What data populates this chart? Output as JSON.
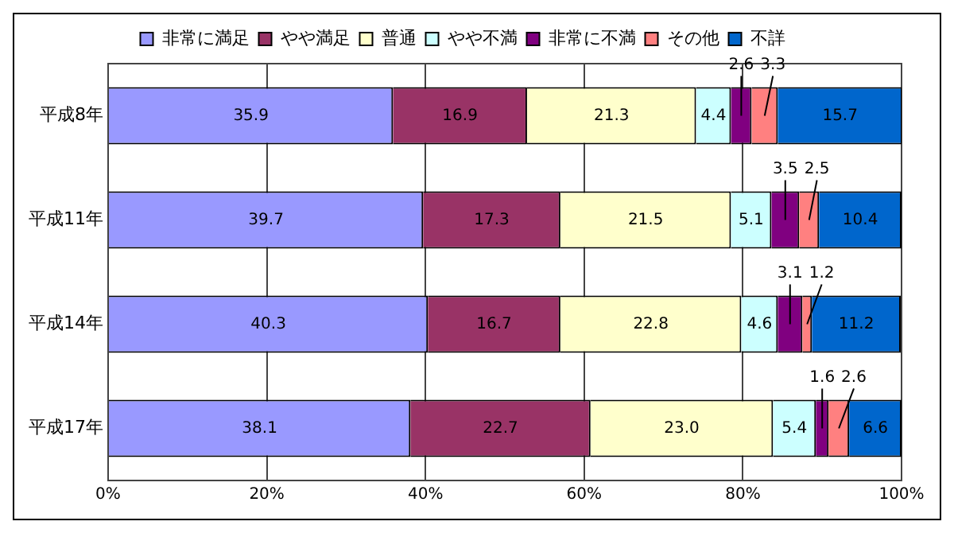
{
  "chart_data": {
    "type": "bar",
    "orientation": "horizontal",
    "stacked": true,
    "categories": [
      "平成8年",
      "平成11年",
      "平成14年",
      "平成17年"
    ],
    "series": [
      {
        "name": "非常に満足",
        "color": "#9999ff",
        "values": [
          35.9,
          39.7,
          40.3,
          38.1
        ],
        "value_labels": [
          "35.9",
          "39.7",
          "40.3",
          "38.1"
        ]
      },
      {
        "name": "やや満足",
        "color": "#993366",
        "values": [
          16.9,
          17.3,
          16.7,
          22.7
        ],
        "value_labels": [
          "16.9",
          "17.3",
          "16.7",
          "22.7"
        ]
      },
      {
        "name": "普通",
        "color": "#ffffcc",
        "values": [
          21.3,
          21.5,
          22.8,
          23.0
        ],
        "value_labels": [
          "21.3",
          "21.5",
          "22.8",
          "23.0"
        ]
      },
      {
        "name": "やや不満",
        "color": "#ccffff",
        "values": [
          4.4,
          5.1,
          4.6,
          5.4
        ],
        "value_labels": [
          "4.4",
          "5.1",
          "4.6",
          "5.4"
        ]
      },
      {
        "name": "非常に不満",
        "color": "#800080",
        "values": [
          2.6,
          3.5,
          3.1,
          1.6
        ],
        "value_labels": [
          "2.6",
          "3.5",
          "3.1",
          "1.6"
        ]
      },
      {
        "name": "その他",
        "color": "#ff8080",
        "values": [
          3.3,
          2.5,
          1.2,
          2.6
        ],
        "value_labels": [
          "3.3",
          "2.5",
          "1.2",
          "2.6"
        ]
      },
      {
        "name": "不詳",
        "color": "#0066cc",
        "values": [
          15.7,
          10.4,
          11.2,
          6.6
        ],
        "value_labels": [
          "15.7",
          "10.4",
          "11.2",
          "6.6"
        ]
      }
    ],
    "xlim": [
      0,
      100
    ],
    "xticks": [
      {
        "value": 0,
        "label": "0%"
      },
      {
        "value": 20,
        "label": "20%"
      },
      {
        "value": 40,
        "label": "40%"
      },
      {
        "value": 60,
        "label": "60%"
      },
      {
        "value": 80,
        "label": "80%"
      },
      {
        "value": 100,
        "label": "100%"
      }
    ],
    "grid": "x",
    "legend": "top"
  }
}
